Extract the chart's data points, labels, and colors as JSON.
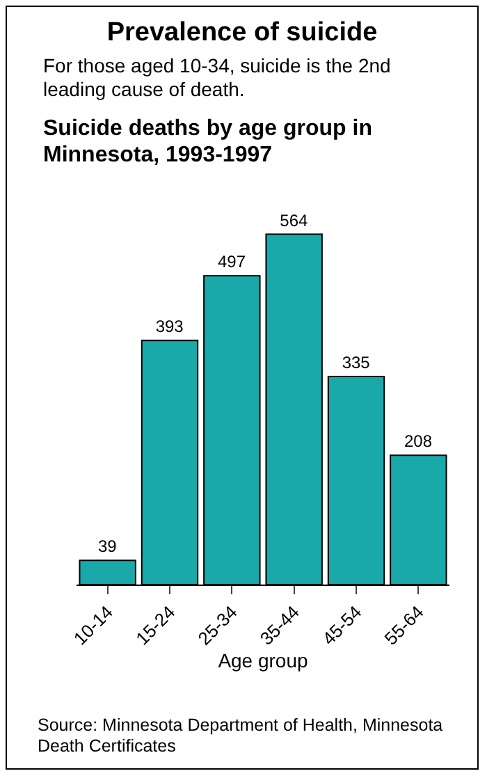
{
  "chart_data": {
    "type": "bar",
    "title": "Prevalence of suicide",
    "subtitle": "For those aged 10-34, suicide is the 2nd leading cause of death.",
    "annotations": [
      "Suicide deaths by age group in Minnesota, 1993-1997",
      "Source: Minnesota Department of Health, Minnesota Death Certificates"
    ],
    "xlabel": "Age group",
    "categories": [
      "10-14",
      "15-24",
      "25-34",
      "35-44",
      "45-54",
      "55-64"
    ],
    "values": [
      39,
      393,
      497,
      564,
      335,
      208
    ],
    "color": "#1aa9a9",
    "data_labels": true,
    "grid": false,
    "legend": false
  }
}
